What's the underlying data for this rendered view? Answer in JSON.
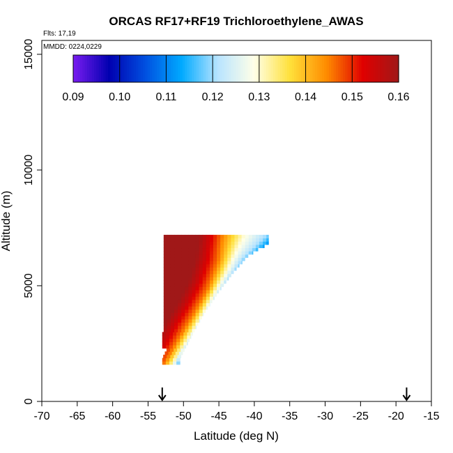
{
  "chart_data": {
    "type": "heatmap",
    "title": "ORCAS RF17+RF19 Trichloroethylene_AWAS",
    "flights_note": "Flts: 17,19",
    "date_note": "MMDD: 0224,0229",
    "xlabel": "Latitude (deg N)",
    "ylabel": "Altitude (m)",
    "xlim": [
      -70,
      -15
    ],
    "ylim": [
      0,
      15600
    ],
    "x_ticks": [
      -70,
      -65,
      -60,
      -55,
      -50,
      -45,
      -40,
      -35,
      -30,
      -25,
      -20,
      -15
    ],
    "y_ticks": [
      0,
      5000,
      10000,
      15000
    ],
    "colorbar": {
      "min": 0.09,
      "max": 0.16,
      "ticks": [
        "0.09",
        "0.10",
        "0.11",
        "0.12",
        "0.13",
        "0.14",
        "0.15",
        "0.16"
      ],
      "colors": [
        "#7a1cf0",
        "#0000b0",
        "#0050e0",
        "#00aaff",
        "#b8e4ff",
        "#ffffe8",
        "#ffe03a",
        "#ff8c00",
        "#e00000",
        "#a01818"
      ]
    },
    "arrows_at_latitude": [
      -53,
      -18.5
    ],
    "field": {
      "description_values": "Trichloroethylene mixing ratio, highest near -53 to -51 at 2500-4500 m, decreasing toward the north-east edge",
      "lat_west_edge": -52.8,
      "top_altitude": 7200,
      "bottom_altitude": 1600,
      "east_edge_points": [
        [
          -50.5,
          1800
        ],
        [
          -49,
          2700
        ],
        [
          -47,
          3800
        ],
        [
          -45,
          4700
        ],
        [
          -43,
          5500
        ],
        [
          -41,
          6200
        ],
        [
          -39,
          6600
        ],
        [
          -38,
          6700
        ]
      ],
      "isolines": [
        {
          "value": 0.155,
          "points": [
            [
              -53,
              2400
            ],
            [
              -51.5,
              3300
            ],
            [
              -49.5,
              4300
            ],
            [
              -48,
              5200
            ],
            [
              -47,
              6200
            ],
            [
              -46.5,
              7200
            ]
          ]
        },
        {
          "value": 0.145,
          "points": [
            [
              -52,
              2000
            ],
            [
              -50.5,
              2800
            ],
            [
              -48.5,
              3800
            ],
            [
              -46.5,
              4900
            ],
            [
              -45,
              6100
            ],
            [
              -44.5,
              7200
            ]
          ]
        },
        {
          "value": 0.13,
          "points": [
            [
              -51.2,
              1800
            ],
            [
              -49.8,
              2500
            ],
            [
              -48,
              3400
            ],
            [
              -46,
              4500
            ],
            [
              -44,
              5600
            ],
            [
              -42.5,
              6600
            ],
            [
              -41.5,
              7200
            ]
          ]
        },
        {
          "value": 0.12,
          "points": [
            [
              -50.8,
              1700
            ],
            [
              -49.3,
              2400
            ],
            [
              -47.5,
              3300
            ],
            [
              -45.5,
              4300
            ],
            [
              -43.5,
              5300
            ],
            [
              -41.5,
              6200
            ],
            [
              -39.5,
              6800
            ]
          ]
        }
      ]
    }
  }
}
